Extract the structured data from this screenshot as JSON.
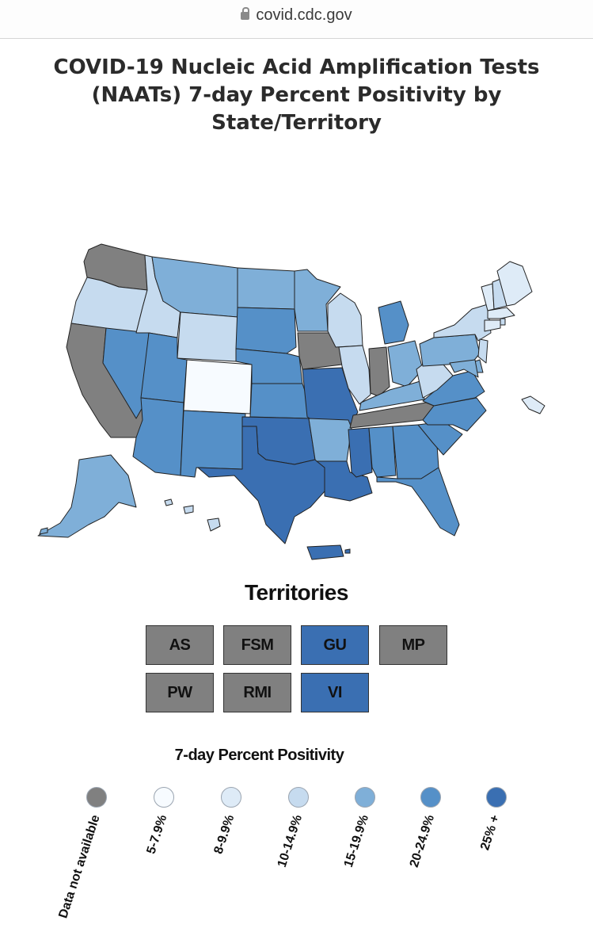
{
  "browser": {
    "url": "covid.cdc.gov"
  },
  "title": "COVID-19 Nucleic Acid Amplification Tests (NAATs) 7-day Percent Positivity by State/Territory",
  "colors": {
    "na": "#808080",
    "c5_7": "#f7fbff",
    "c8_9": "#deebf7",
    "c10_14": "#c6dbef",
    "c15_19": "#7fafd8",
    "c20_24": "#5590c8",
    "c25": "#3a6fb2",
    "border": "#222222"
  },
  "map": {
    "states": [
      {
        "abbr": "WA",
        "bin": "na"
      },
      {
        "abbr": "OR",
        "bin": "c10_14"
      },
      {
        "abbr": "CA",
        "bin": "na"
      },
      {
        "abbr": "NV",
        "bin": "c20_24"
      },
      {
        "abbr": "ID",
        "bin": "c10_14"
      },
      {
        "abbr": "MT",
        "bin": "c15_19"
      },
      {
        "abbr": "WY",
        "bin": "c10_14"
      },
      {
        "abbr": "UT",
        "bin": "c20_24"
      },
      {
        "abbr": "AZ",
        "bin": "c20_24"
      },
      {
        "abbr": "CO",
        "bin": "c5_7"
      },
      {
        "abbr": "NM",
        "bin": "c20_24"
      },
      {
        "abbr": "ND",
        "bin": "c15_19"
      },
      {
        "abbr": "SD",
        "bin": "c20_24"
      },
      {
        "abbr": "NE",
        "bin": "c20_24"
      },
      {
        "abbr": "KS",
        "bin": "c20_24"
      },
      {
        "abbr": "OK",
        "bin": "c25"
      },
      {
        "abbr": "TX",
        "bin": "c25"
      },
      {
        "abbr": "MN",
        "bin": "c15_19"
      },
      {
        "abbr": "IA",
        "bin": "na"
      },
      {
        "abbr": "MO",
        "bin": "c25"
      },
      {
        "abbr": "AR",
        "bin": "c15_19"
      },
      {
        "abbr": "LA",
        "bin": "c25"
      },
      {
        "abbr": "WI",
        "bin": "c10_14"
      },
      {
        "abbr": "IL",
        "bin": "c10_14"
      },
      {
        "abbr": "MI",
        "bin": "c20_24"
      },
      {
        "abbr": "IN",
        "bin": "na"
      },
      {
        "abbr": "OH",
        "bin": "c15_19"
      },
      {
        "abbr": "KY",
        "bin": "c15_19"
      },
      {
        "abbr": "TN",
        "bin": "na"
      },
      {
        "abbr": "MS",
        "bin": "c25"
      },
      {
        "abbr": "AL",
        "bin": "c20_24"
      },
      {
        "abbr": "GA",
        "bin": "c20_24"
      },
      {
        "abbr": "FL",
        "bin": "c20_24"
      },
      {
        "abbr": "SC",
        "bin": "c20_24"
      },
      {
        "abbr": "NC",
        "bin": "c20_24"
      },
      {
        "abbr": "VA",
        "bin": "c20_24"
      },
      {
        "abbr": "WV",
        "bin": "c10_14"
      },
      {
        "abbr": "PA",
        "bin": "c15_19"
      },
      {
        "abbr": "NY",
        "bin": "c10_14"
      },
      {
        "abbr": "VT",
        "bin": "c8_9"
      },
      {
        "abbr": "NH",
        "bin": "c10_14"
      },
      {
        "abbr": "ME",
        "bin": "c8_9"
      },
      {
        "abbr": "MA",
        "bin": "c8_9"
      },
      {
        "abbr": "RI",
        "bin": "c10_14"
      },
      {
        "abbr": "CT",
        "bin": "c8_9"
      },
      {
        "abbr": "NJ",
        "bin": "c10_14"
      },
      {
        "abbr": "DE",
        "bin": "c15_19"
      },
      {
        "abbr": "MD",
        "bin": "c15_19"
      },
      {
        "abbr": "DC",
        "bin": "c8_9"
      },
      {
        "abbr": "AK",
        "bin": "c15_19"
      },
      {
        "abbr": "HI",
        "bin": "c10_14"
      },
      {
        "abbr": "PR",
        "bin": "c25"
      }
    ]
  },
  "territories": {
    "title": "Territories",
    "items": [
      {
        "label": "AS",
        "bin": "na"
      },
      {
        "label": "FSM",
        "bin": "na"
      },
      {
        "label": "GU",
        "bin": "c25"
      },
      {
        "label": "MP",
        "bin": "na"
      },
      {
        "label": "PW",
        "bin": "na"
      },
      {
        "label": "RMI",
        "bin": "na"
      },
      {
        "label": "VI",
        "bin": "c25"
      }
    ]
  },
  "legend": {
    "title": "7-day Percent Positivity",
    "items": [
      {
        "label": "Data not available",
        "bin": "na"
      },
      {
        "label": "5-7.9%",
        "bin": "c5_7"
      },
      {
        "label": "8-9.9%",
        "bin": "c8_9"
      },
      {
        "label": "10-14.9%",
        "bin": "c10_14"
      },
      {
        "label": "15-19.9%",
        "bin": "c15_19"
      },
      {
        "label": "20-24.9%",
        "bin": "c20_24"
      },
      {
        "label": "25% +",
        "bin": "c25"
      }
    ]
  }
}
